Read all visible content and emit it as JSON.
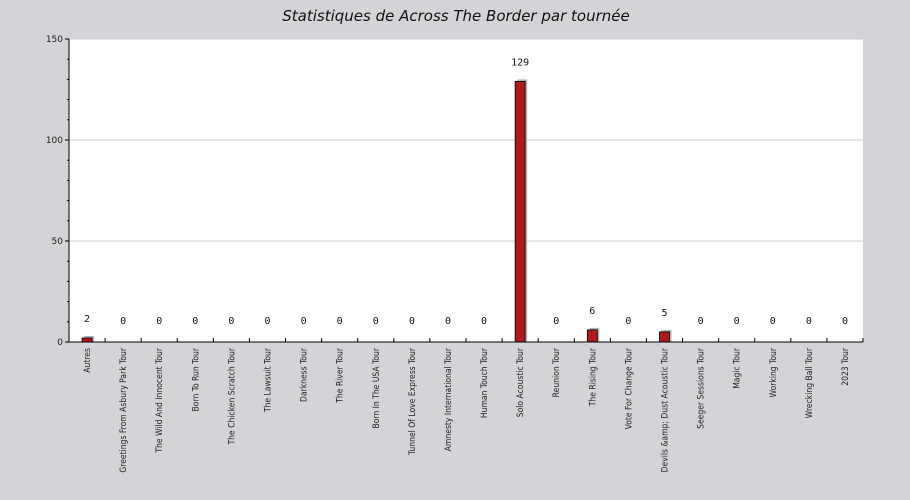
{
  "chart_data": {
    "type": "bar",
    "title": "Statistiques de Across The Border par tournée",
    "xlabel": "",
    "ylabel": "",
    "ylim": [
      0,
      150
    ],
    "yticks": [
      0,
      50,
      100,
      150
    ],
    "grid": true,
    "categories": [
      "Autres",
      "Greetings From Asbury Park Tour",
      "The Wild And Innocent Tour",
      "Born To Run Tour",
      "The Chicken Scratch Tour",
      "The Lawsuit Tour",
      "Darkness Tour",
      "The River Tour",
      "Born In The USA Tour",
      "Tunnel Of Love Express Tour",
      "Amnesty International Tour",
      "Human Touch Tour",
      "Solo Acoustic Tour",
      "Reunion Tour",
      "The Rising Tour",
      "Vote For Change Tour",
      "Devils &amp; Dust Acoustic Tour",
      "Seeger Sessions Tour",
      "Magic Tour",
      "Working Tour",
      "Wrecking Ball Tour",
      "2023 Tour"
    ],
    "values": [
      2,
      0,
      0,
      0,
      0,
      0,
      0,
      0,
      0,
      0,
      0,
      0,
      129,
      0,
      6,
      0,
      5,
      0,
      0,
      0,
      0,
      0
    ],
    "colors": {
      "background": "#d4d3d8",
      "plot_background": "#ffffff",
      "bar": "#b01a1a",
      "bar_shadow": "#b3b3b3",
      "grid": "#cfcfcf"
    }
  }
}
